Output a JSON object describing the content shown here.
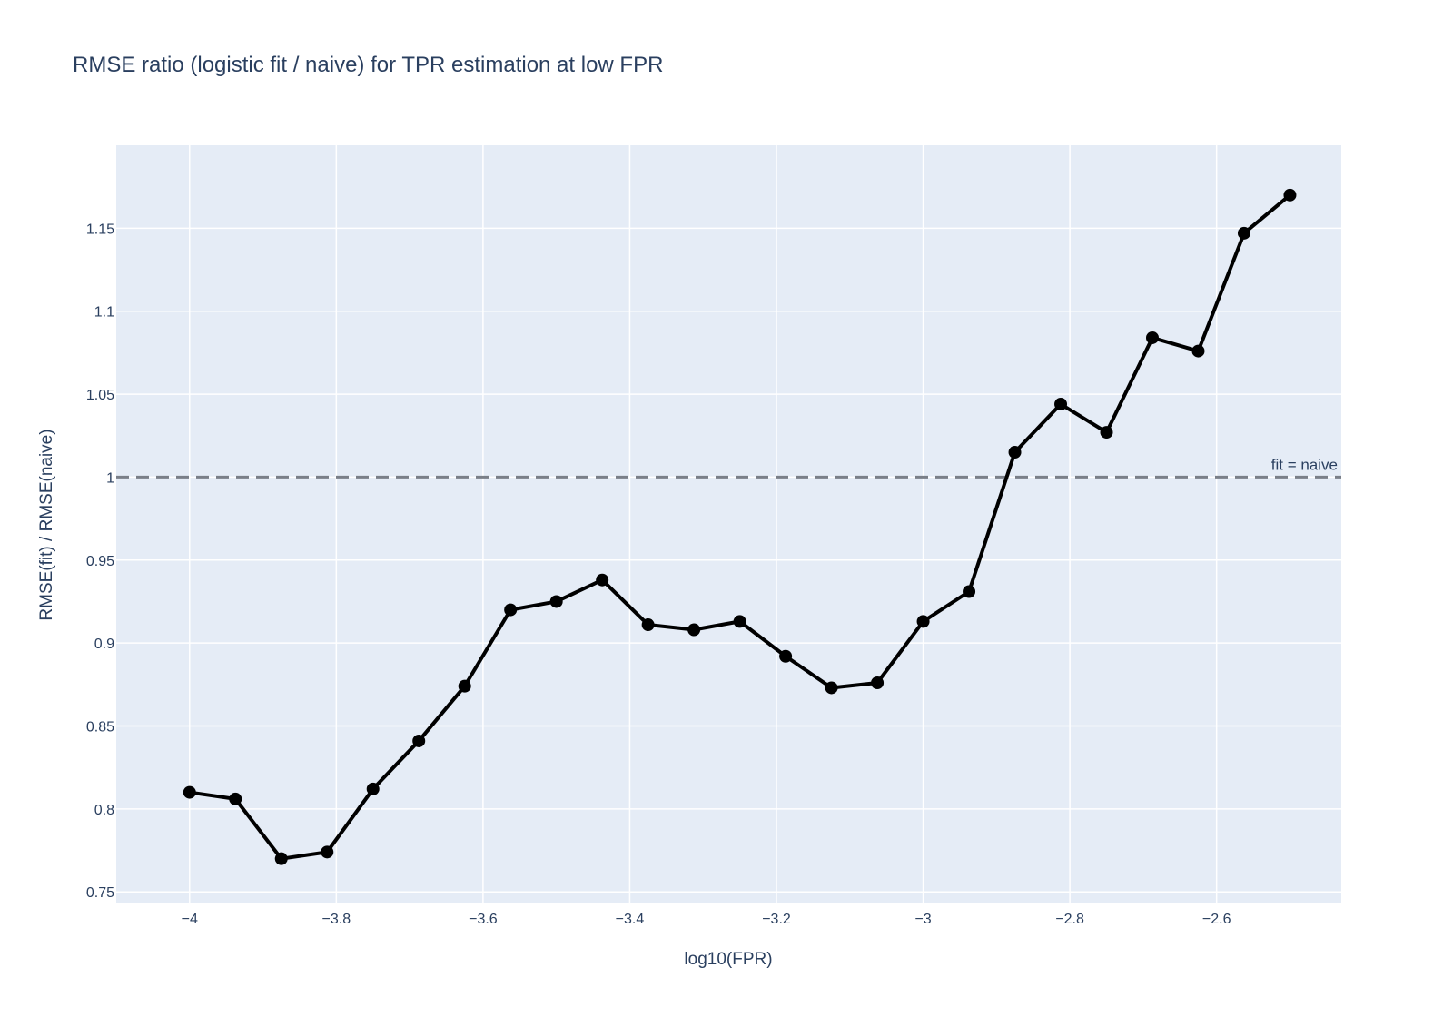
{
  "chart_data": {
    "type": "line",
    "title": "RMSE ratio (logistic fit / naive) for TPR estimation at low FPR",
    "xlabel": "log10(FPR)",
    "ylabel": "RMSE(fit) / RMSE(naive)",
    "xlim": [
      -4.1,
      -2.43
    ],
    "ylim": [
      0.743,
      1.2
    ],
    "x_ticks": [
      -4,
      -3.8,
      -3.6,
      -3.4,
      -3.2,
      -3,
      -2.8,
      -2.6
    ],
    "x_tick_labels": [
      "−4",
      "−3.8",
      "−3.6",
      "−3.4",
      "−3.2",
      "−3",
      "−2.8",
      "−2.6"
    ],
    "y_ticks": [
      0.75,
      0.8,
      0.85,
      0.9,
      0.95,
      1,
      1.05,
      1.1,
      1.15
    ],
    "y_tick_labels": [
      "0.75",
      "0.8",
      "0.85",
      "0.9",
      "0.95",
      "1",
      "1.05",
      "1.1",
      "1.15"
    ],
    "grid": true,
    "background": "#e5ecf6",
    "series": [
      {
        "color": "#000000",
        "x": [
          -4.0,
          -3.9375,
          -3.875,
          -3.8125,
          -3.75,
          -3.6875,
          -3.625,
          -3.5625,
          -3.5,
          -3.4375,
          -3.375,
          -3.3125,
          -3.25,
          -3.1875,
          -3.125,
          -3.0625,
          -3.0,
          -2.9375,
          -2.875,
          -2.8125,
          -2.75,
          -2.6875,
          -2.625,
          -2.5625,
          -2.5
        ],
        "y": [
          0.81,
          0.806,
          0.77,
          0.774,
          0.812,
          0.841,
          0.874,
          0.92,
          0.925,
          0.938,
          0.911,
          0.908,
          0.913,
          0.892,
          0.873,
          0.876,
          0.913,
          0.931,
          1.015,
          1.044,
          1.027,
          1.084,
          1.076,
          1.147,
          1.17
        ]
      }
    ],
    "reference_line": {
      "y": 1,
      "label": "fit = naive",
      "color": "#7a7f88",
      "dash": "dashed"
    }
  }
}
